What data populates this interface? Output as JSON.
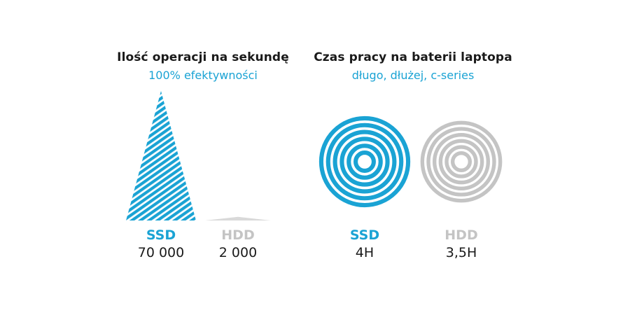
{
  "colors": {
    "accent": "#1aa3d4",
    "muted": "#c4c4c4",
    "text": "#1a1a1a"
  },
  "chart_data": [
    {
      "type": "bar",
      "title": "Ilość operacji na sekundę",
      "subtitle": "100% efektywności",
      "categories": [
        "SSD",
        "HDD"
      ],
      "values": [
        70000,
        2000
      ],
      "value_labels": [
        "70 000",
        "2 000"
      ],
      "ylim": [
        0,
        70000
      ]
    },
    {
      "type": "bar",
      "title": "Czas pracy na baterii laptopa",
      "subtitle": "długo, dłużej, c-series",
      "categories": [
        "SSD",
        "HDD"
      ],
      "values": [
        4,
        3.5
      ],
      "value_labels": [
        "4H",
        "3,5H"
      ]
    }
  ]
}
